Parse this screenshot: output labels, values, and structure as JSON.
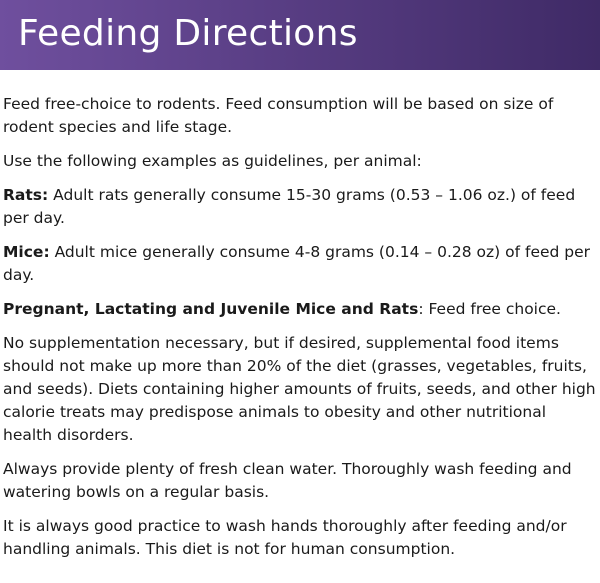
{
  "header": {
    "title": "Feeding Directions",
    "background_color_start": "#6f4f9e",
    "background_color_end": "#3f2a66"
  },
  "body": {
    "intro": "Feed free-choice to rodents. Feed consumption will be based on size of rodent species and life stage.",
    "guidelines": "Use the following examples as guidelines, per animal:",
    "rats": {
      "label": "Rats:",
      "text": " Adult rats generally consume 15-30 grams (0.53 – 1.06 oz.) of feed per day."
    },
    "mice": {
      "label": "Mice:",
      "text": " Adult mice generally consume 4-8 grams (0.14 – 0.28 oz) of feed per day."
    },
    "pregnant": {
      "label": "Pregnant, Lactating and Juvenile Mice and Rats",
      "text": ": Feed free choice."
    },
    "supplementation": "No supplementation necessary, but if desired, supplemental food items should not make up more than 20% of the diet (grasses, vegetables, fruits, and seeds). Diets containing higher amounts of fruits, seeds, and other high calorie treats may predispose animals to obesity and other nutritional health disorders.",
    "water": "Always provide plenty of fresh clean water. Thoroughly wash feeding and watering bowls on a regular basis.",
    "hygiene": "It is always good practice to wash hands thoroughly after feeding and/or handling animals. This diet is not for human consumption."
  }
}
